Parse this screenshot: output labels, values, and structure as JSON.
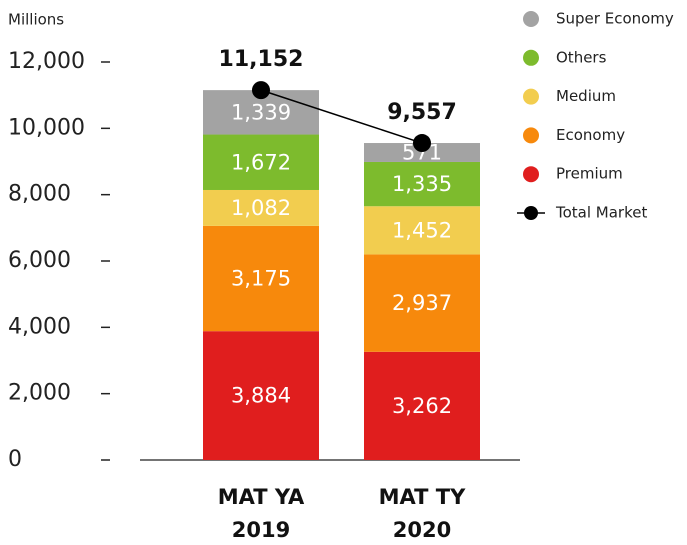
{
  "chart_data": {
    "type": "stacked_bar",
    "y_axis_label": "Millions",
    "categories": [
      "MAT YA 2019",
      "MAT TY 2020"
    ],
    "ylim": [
      0,
      12000
    ],
    "yticks": [
      0,
      {
        "value": 2000,
        "label": "2,000"
      },
      {
        "value": 4000,
        "label": "4,000"
      },
      {
        "value": 6000,
        "label": "6,000"
      },
      {
        "value": 8000,
        "label": "8,000"
      },
      {
        "value": 10000,
        "label": "10,000"
      },
      {
        "value": 12000,
        "label": "12,000"
      }
    ],
    "series": [
      {
        "name": "Premium",
        "color": "#e01e1e",
        "values": [
          3884,
          3262
        ],
        "value_labels": [
          "3,884",
          "3,262"
        ]
      },
      {
        "name": "Economy",
        "color": "#f7890c",
        "values": [
          3175,
          2937
        ],
        "value_labels": [
          "3,175",
          "2,937"
        ]
      },
      {
        "name": "Medium",
        "color": "#f2cd4f",
        "values": [
          1082,
          1452
        ],
        "value_labels": [
          "1,082",
          "1,452"
        ]
      },
      {
        "name": "Others",
        "color": "#7dbb2d",
        "values": [
          1672,
          1335
        ],
        "value_labels": [
          "1,672",
          "1,335"
        ]
      },
      {
        "name": "Super Economy",
        "color": "#a3a3a3",
        "values": [
          1339,
          571
        ],
        "value_labels": [
          "1,339",
          "571"
        ]
      }
    ],
    "line_series": {
      "type": "line",
      "name": "Total Market",
      "color": "#000000",
      "values": [
        11152,
        9557
      ],
      "value_labels": [
        "11,152",
        "9,557"
      ]
    }
  }
}
